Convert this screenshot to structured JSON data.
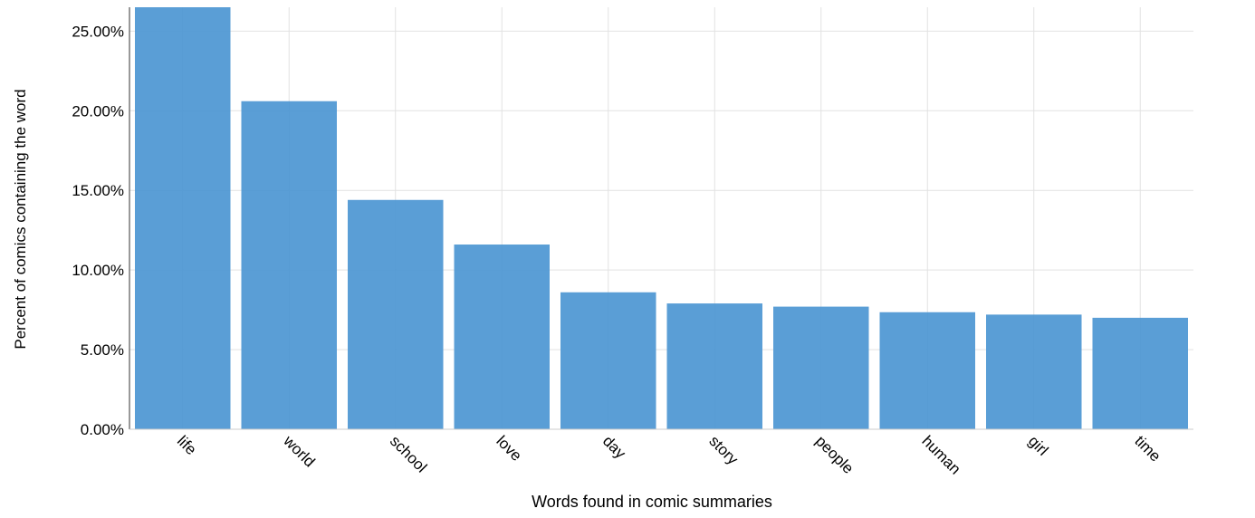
{
  "chart_data": {
    "type": "bar",
    "title": "",
    "xlabel": "Words found in comic summaries",
    "ylabel": "Percent of comics containing the word",
    "categories": [
      "life",
      "world",
      "school",
      "love",
      "day",
      "story",
      "people",
      "human",
      "girl",
      "time"
    ],
    "values": [
      27.0,
      20.6,
      14.4,
      11.6,
      8.6,
      7.9,
      7.7,
      7.35,
      7.2,
      7.0
    ],
    "ylim": [
      0,
      26.5
    ],
    "yticks": [
      0,
      5,
      10,
      15,
      20,
      25
    ],
    "ytick_labels": [
      "0.00%",
      "5.00%",
      "10.00%",
      "15.00%",
      "20.00%",
      "25.00%"
    ],
    "grid": true,
    "bar_color": "#4c96d2"
  }
}
